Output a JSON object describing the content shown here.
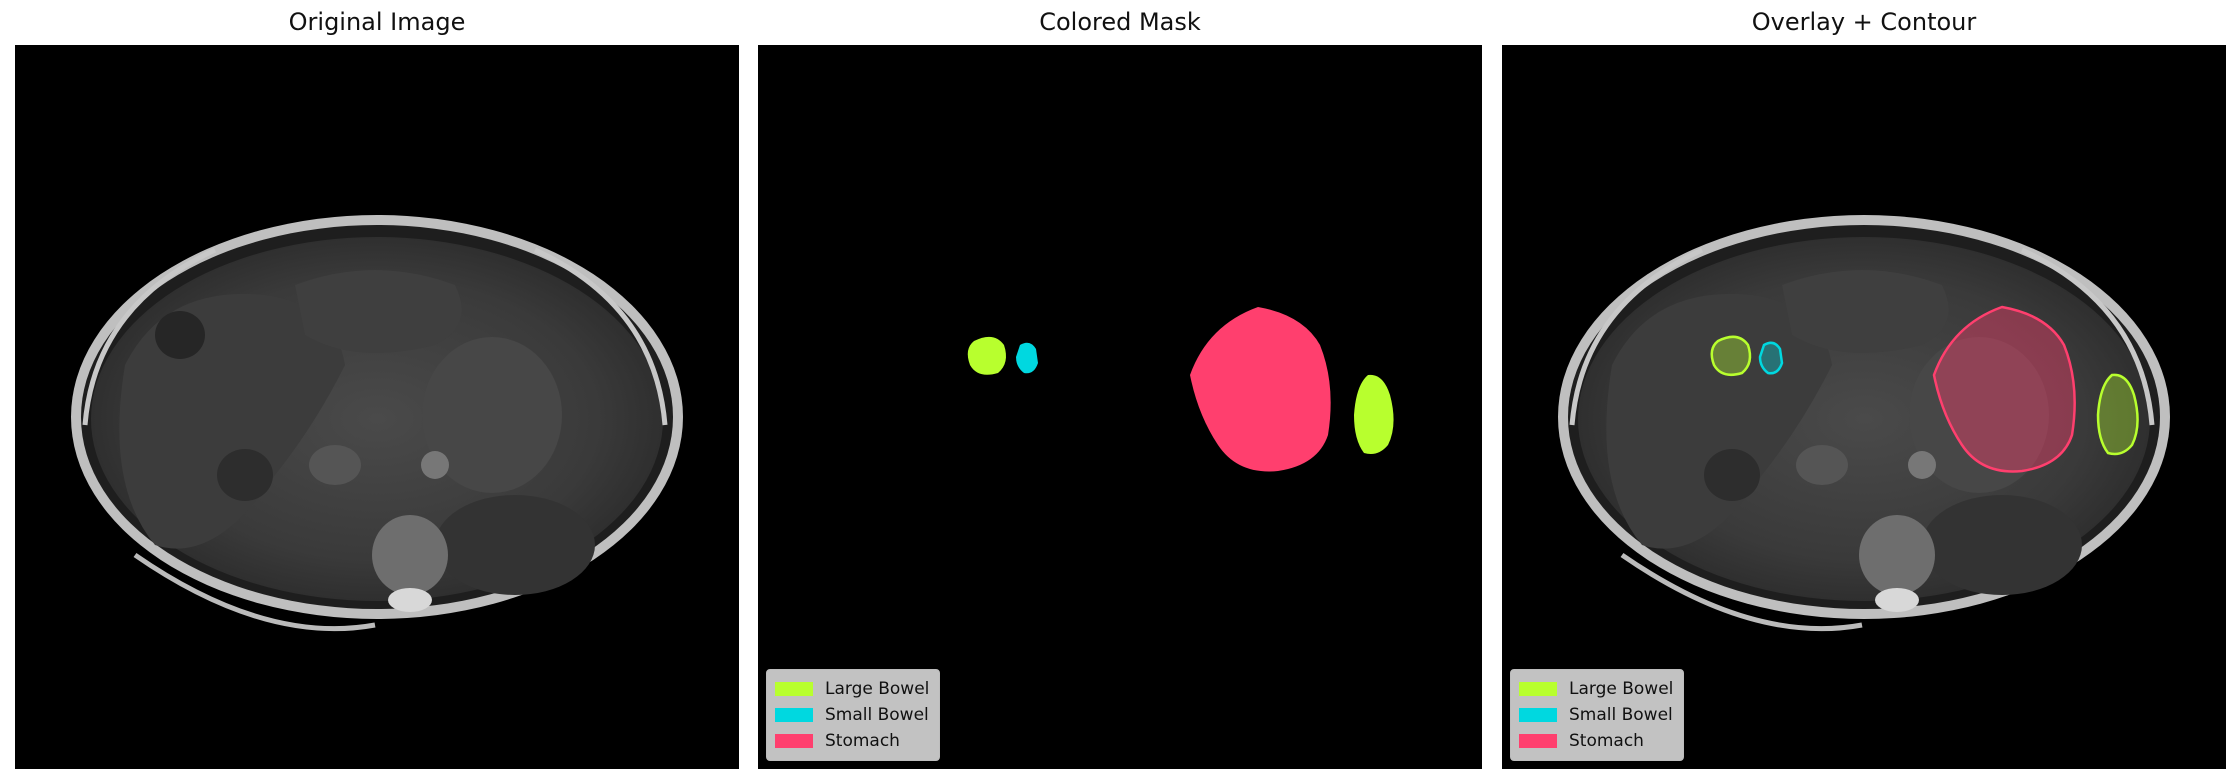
{
  "panels": [
    {
      "title": "Original Image"
    },
    {
      "title": "Colored Mask"
    },
    {
      "title": "Overlay + Contour"
    }
  ],
  "legend": [
    {
      "label": "Large Bowel",
      "color": "#b8ff2e"
    },
    {
      "label": "Small Bowel",
      "color": "#00d8e0"
    },
    {
      "label": "Stomach",
      "color": "#ff3f6e"
    }
  ]
}
